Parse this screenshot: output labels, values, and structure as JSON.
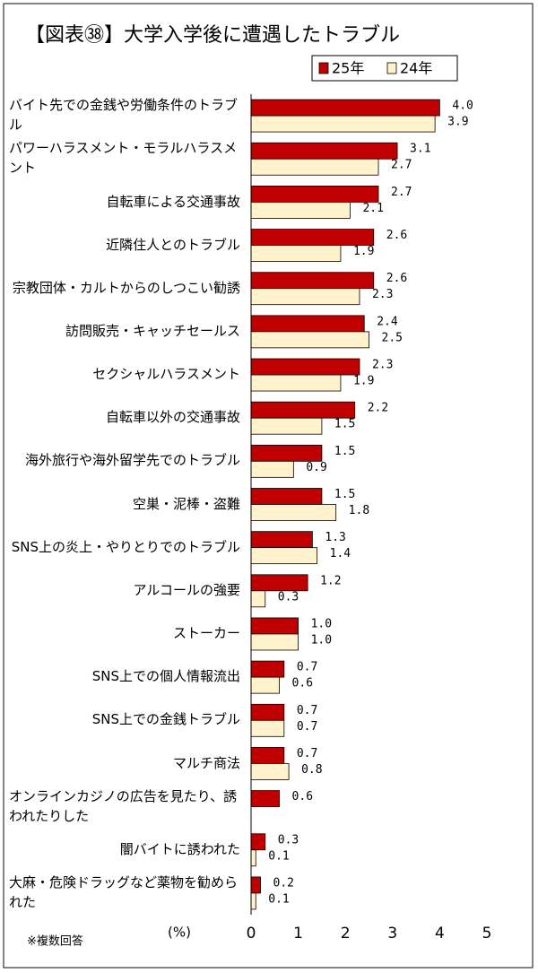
{
  "chart_data": {
    "type": "bar",
    "orientation": "horizontal",
    "title": "【図表㊳】大学入学後に遭遇したトラブル",
    "categories": [
      "バイト先での金銭や労働条件のトラブル",
      "パワーハラスメント・モラルハラスメント",
      "自転車による交通事故",
      "近隣住人とのトラブル",
      "宗教団体・カルトからのしつこい勧誘",
      "訪問販売・キャッチセールス",
      "セクシャルハラスメント",
      "自転車以外の交通事故",
      "海外旅行や海外留学先でのトラブル",
      "空巣・泥棒・盗難",
      "SNS上の炎上・やりとりでのトラブル",
      "アルコールの強要",
      "ストーカー",
      "SNS上での個人情報流出",
      "SNS上での金銭トラブル",
      "マルチ商法",
      "オンラインカジノの広告を見たり、誘われたりした",
      "闇バイトに誘われた",
      "大麻・危険ドラッグなど薬物を勧められた"
    ],
    "series": [
      {
        "name": "25年",
        "color": "#c00000",
        "values": [
          4.0,
          3.1,
          2.7,
          2.6,
          2.6,
          2.4,
          2.3,
          2.2,
          1.5,
          1.5,
          1.3,
          1.2,
          1.0,
          0.7,
          0.7,
          0.7,
          0.6,
          0.3,
          0.2
        ],
        "value_labels": [
          "4.0",
          "3.1",
          "2.7",
          "2.6",
          "2.6",
          "2.4",
          "2.3",
          "2.2",
          "1.5",
          "1.5",
          "1.3",
          "1.2",
          "1.0",
          "0.7",
          "0.7",
          "0.7",
          "0.6",
          "0.3",
          "0.2"
        ]
      },
      {
        "name": "24年",
        "color": "#fff2cc",
        "values": [
          3.9,
          2.7,
          2.1,
          1.9,
          2.3,
          2.5,
          1.9,
          1.5,
          0.9,
          1.8,
          1.4,
          0.3,
          1.0,
          0.6,
          0.7,
          0.8,
          null,
          0.1,
          0.1
        ],
        "value_labels": [
          "3.9",
          "2.7",
          "2.1",
          "1.9",
          "2.3",
          "2.5",
          "1.9",
          "1.5",
          "0.9",
          "1.8",
          "1.4",
          "0.3",
          "1.0",
          "0.6",
          "0.7",
          "0.8",
          null,
          "0.1",
          "0.1"
        ]
      }
    ],
    "xlim": [
      0,
      5
    ],
    "xticks": [
      0,
      1,
      2,
      3,
      4,
      5
    ],
    "x_axis_label": "(%)",
    "note": "※複数回答",
    "grid": false
  }
}
